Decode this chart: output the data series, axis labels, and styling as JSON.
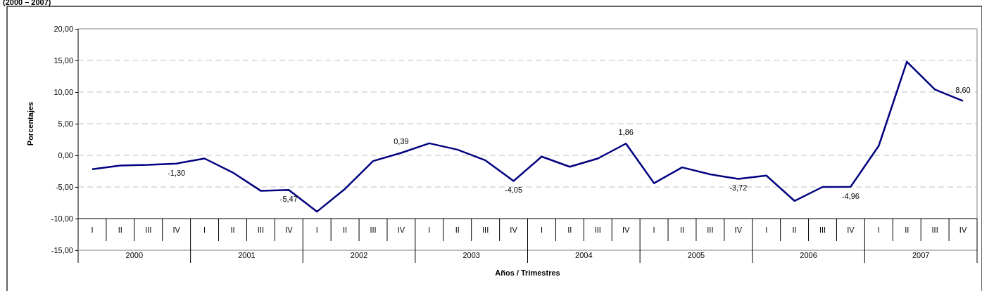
{
  "chart_data": {
    "type": "line",
    "title": "(2000 – 2007)",
    "ylabel": "Porcentajes",
    "xlabel": "Años / Trimestres",
    "categories": [
      "I",
      "II",
      "III",
      "IV",
      "I",
      "II",
      "III",
      "IV",
      "I",
      "II",
      "III",
      "IV",
      "I",
      "II",
      "III",
      "IV",
      "I",
      "II",
      "III",
      "IV",
      "I",
      "II",
      "III",
      "IV",
      "I",
      "II",
      "III",
      "IV",
      "I",
      "II",
      "III",
      "IV"
    ],
    "series": [
      {
        "color": "#000080",
        "values": [
          -2.2,
          -1.6,
          -1.5,
          -1.3,
          -0.5,
          -2.7,
          -5.6,
          -5.47,
          -8.9,
          -5.3,
          -0.9,
          0.39,
          1.9,
          0.9,
          -0.8,
          -4.05,
          -0.2,
          -1.8,
          -0.5,
          1.86,
          -4.4,
          -1.9,
          -3.0,
          -3.72,
          -3.2,
          -7.2,
          -5.0,
          -4.96,
          1.5,
          14.8,
          10.4,
          8.6
        ],
        "value_labels": [
          null,
          null,
          null,
          "-1,30",
          null,
          null,
          null,
          "-5,47",
          null,
          null,
          null,
          "0,39",
          null,
          null,
          null,
          "-4,05",
          null,
          null,
          null,
          "1,86",
          null,
          null,
          null,
          "-3,72",
          null,
          null,
          null,
          "-4,96",
          null,
          null,
          null,
          "8,60"
        ]
      }
    ],
    "annotations": [
      "2000",
      "2001",
      "2002",
      "2003",
      "2004",
      "2005",
      "2006",
      "2007"
    ],
    "ylim": [
      -15,
      20
    ],
    "yticks": [
      {
        "value": -15,
        "label": "-15,00"
      },
      {
        "value": -10,
        "label": "-10,00"
      },
      {
        "value": -5,
        "label": "-5,00"
      },
      {
        "value": 0,
        "label": "0,00"
      },
      {
        "value": 5,
        "label": "5,00"
      },
      {
        "value": 10,
        "label": "10,00"
      },
      {
        "value": 15,
        "label": "15,00"
      },
      {
        "value": 20,
        "label": "20,00"
      }
    ],
    "grid": "y",
    "marker": "none",
    "line_style": "solid"
  }
}
